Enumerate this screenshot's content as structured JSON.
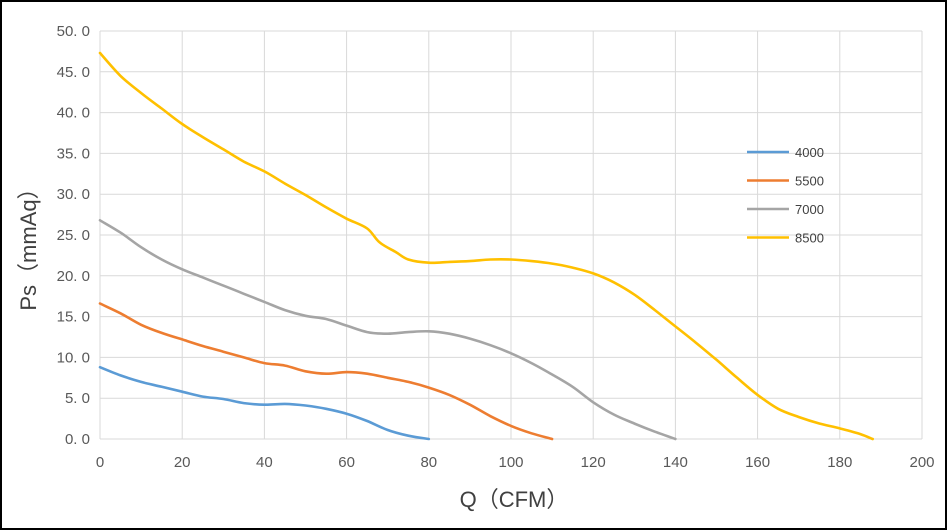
{
  "chart_data": {
    "type": "line",
    "title": "",
    "xlabel": "Q（CFM）",
    "ylabel": "Ps（mmAq）",
    "xlim": [
      0,
      200
    ],
    "ylim": [
      0,
      50
    ],
    "x_ticks": [
      "0",
      "20",
      "40",
      "60",
      "80",
      "100",
      "120",
      "140",
      "160",
      "180",
      "200"
    ],
    "y_ticks": [
      "0. 0",
      "5. 0",
      "10. 0",
      "15. 0",
      "20. 0",
      "25. 0",
      "30. 0",
      "35. 0",
      "40. 0",
      "45. 0",
      "50. 0"
    ],
    "grid": true,
    "legend_position": "right",
    "series": [
      {
        "name": "4000",
        "color": "#5B9BD5",
        "points": [
          [
            0,
            8.8
          ],
          [
            5,
            7.8
          ],
          [
            10,
            7.0
          ],
          [
            15,
            6.4
          ],
          [
            20,
            5.8
          ],
          [
            25,
            5.2
          ],
          [
            30,
            4.9
          ],
          [
            35,
            4.4
          ],
          [
            40,
            4.2
          ],
          [
            45,
            4.3
          ],
          [
            50,
            4.1
          ],
          [
            55,
            3.7
          ],
          [
            60,
            3.1
          ],
          [
            65,
            2.2
          ],
          [
            70,
            1.1
          ],
          [
            75,
            0.4
          ],
          [
            80,
            0.0
          ]
        ]
      },
      {
        "name": "5500",
        "color": "#ED7D31",
        "points": [
          [
            0,
            16.6
          ],
          [
            5,
            15.4
          ],
          [
            10,
            14.0
          ],
          [
            15,
            13.0
          ],
          [
            20,
            12.2
          ],
          [
            25,
            11.4
          ],
          [
            30,
            10.7
          ],
          [
            35,
            10.0
          ],
          [
            40,
            9.3
          ],
          [
            45,
            9.0
          ],
          [
            50,
            8.3
          ],
          [
            55,
            8.0
          ],
          [
            60,
            8.2
          ],
          [
            65,
            8.0
          ],
          [
            70,
            7.5
          ],
          [
            75,
            7.0
          ],
          [
            80,
            6.3
          ],
          [
            85,
            5.4
          ],
          [
            90,
            4.2
          ],
          [
            95,
            2.8
          ],
          [
            100,
            1.6
          ],
          [
            105,
            0.7
          ],
          [
            110,
            0.0
          ]
        ]
      },
      {
        "name": "7000",
        "color": "#A5A5A5",
        "points": [
          [
            0,
            26.8
          ],
          [
            5,
            25.3
          ],
          [
            10,
            23.5
          ],
          [
            15,
            22.0
          ],
          [
            20,
            20.8
          ],
          [
            25,
            19.8
          ],
          [
            30,
            18.8
          ],
          [
            35,
            17.8
          ],
          [
            40,
            16.8
          ],
          [
            45,
            15.8
          ],
          [
            50,
            15.1
          ],
          [
            55,
            14.7
          ],
          [
            60,
            13.9
          ],
          [
            65,
            13.1
          ],
          [
            70,
            12.9
          ],
          [
            75,
            13.1
          ],
          [
            80,
            13.2
          ],
          [
            85,
            12.9
          ],
          [
            90,
            12.3
          ],
          [
            95,
            11.5
          ],
          [
            100,
            10.5
          ],
          [
            105,
            9.3
          ],
          [
            110,
            7.9
          ],
          [
            115,
            6.4
          ],
          [
            120,
            4.5
          ],
          [
            125,
            3.0
          ],
          [
            130,
            1.9
          ],
          [
            135,
            0.9
          ],
          [
            140,
            0.0
          ]
        ]
      },
      {
        "name": "8500",
        "color": "#FFC000",
        "points": [
          [
            0,
            47.3
          ],
          [
            5,
            44.5
          ],
          [
            10,
            42.4
          ],
          [
            15,
            40.5
          ],
          [
            20,
            38.6
          ],
          [
            25,
            37.0
          ],
          [
            30,
            35.5
          ],
          [
            35,
            34.0
          ],
          [
            40,
            32.8
          ],
          [
            45,
            31.3
          ],
          [
            50,
            29.9
          ],
          [
            55,
            28.4
          ],
          [
            60,
            27.0
          ],
          [
            65,
            25.8
          ],
          [
            68,
            24.1
          ],
          [
            72,
            22.9
          ],
          [
            75,
            22.0
          ],
          [
            80,
            21.6
          ],
          [
            85,
            21.7
          ],
          [
            90,
            21.8
          ],
          [
            95,
            22.0
          ],
          [
            100,
            22.0
          ],
          [
            105,
            21.8
          ],
          [
            110,
            21.5
          ],
          [
            115,
            21.0
          ],
          [
            120,
            20.3
          ],
          [
            125,
            19.2
          ],
          [
            130,
            17.7
          ],
          [
            135,
            15.8
          ],
          [
            140,
            13.8
          ],
          [
            145,
            11.8
          ],
          [
            150,
            9.7
          ],
          [
            155,
            7.5
          ],
          [
            160,
            5.4
          ],
          [
            165,
            3.7
          ],
          [
            170,
            2.7
          ],
          [
            175,
            1.9
          ],
          [
            180,
            1.3
          ],
          [
            185,
            0.6
          ],
          [
            188,
            0.0
          ]
        ]
      }
    ]
  }
}
